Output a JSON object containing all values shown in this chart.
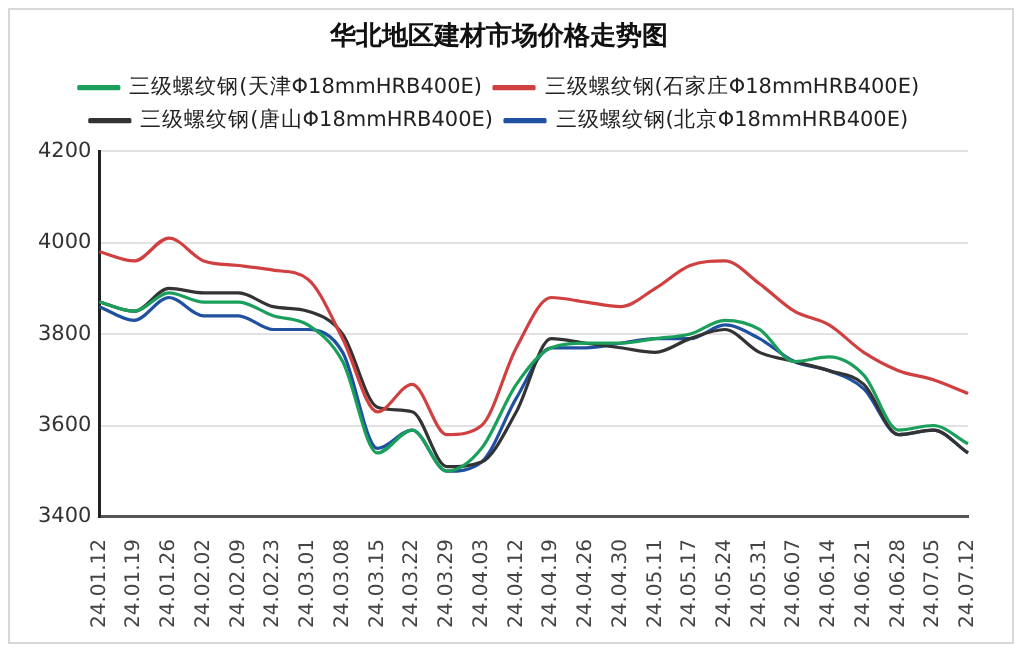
{
  "chart_data": {
    "type": "line",
    "title": "华北地区建材市场价格走势图",
    "categories": [
      "24.01.12",
      "24.01.19",
      "24.01.26",
      "24.02.02",
      "24.02.09",
      "24.02.23",
      "24.03.01",
      "24.03.08",
      "24.03.15",
      "24.03.22",
      "24.03.29",
      "24.04.03",
      "24.04.12",
      "24.04.19",
      "24.04.26",
      "24.04.30",
      "24.05.11",
      "24.05.17",
      "24.05.24",
      "24.05.31",
      "24.06.07",
      "24.06.14",
      "24.06.21",
      "24.06.28",
      "24.07.05",
      "24.07.12"
    ],
    "series": [
      {
        "name": "三级螺纹钢(天津Φ18mmHRB400E)",
        "color": "#1aa05a",
        "values": [
          3870,
          3850,
          3890,
          3870,
          3870,
          3840,
          3820,
          3740,
          3540,
          3590,
          3500,
          3550,
          3690,
          3770,
          3780,
          3780,
          3790,
          3800,
          3830,
          3810,
          3740,
          3750,
          3710,
          3590,
          3600,
          3560
        ]
      },
      {
        "name": "三级螺纹钢(石家庄Φ18mmHRB400E)",
        "color": "#d04040",
        "values": [
          3980,
          3960,
          4010,
          3960,
          3950,
          3940,
          3920,
          3790,
          3630,
          3690,
          3580,
          3600,
          3770,
          3880,
          3870,
          3860,
          3900,
          3950,
          3960,
          3910,
          3850,
          3820,
          3760,
          3720,
          3700,
          3670
        ]
      },
      {
        "name": "三级螺纹钢(唐山Φ18mmHRB400E)",
        "color": "#333333",
        "values": [
          3870,
          3850,
          3900,
          3890,
          3890,
          3860,
          3850,
          3800,
          3640,
          3630,
          3510,
          3520,
          3630,
          3790,
          3780,
          3770,
          3760,
          3790,
          3810,
          3760,
          3740,
          3720,
          3690,
          3580,
          3590,
          3540
        ]
      },
      {
        "name": "三级螺纹钢(北京Φ18mmHRB400E)",
        "color": "#2050a0",
        "values": [
          3860,
          3830,
          3880,
          3840,
          3840,
          3810,
          3810,
          3760,
          3550,
          3590,
          3500,
          3520,
          3660,
          3770,
          3770,
          3780,
          3790,
          3790,
          3820,
          3790,
          3740,
          3720,
          3680,
          3580,
          3590,
          3540
        ]
      }
    ],
    "ylim": [
      3400,
      4200
    ],
    "yticks": [
      3400,
      3600,
      3800,
      4000,
      4200
    ],
    "grid": "y",
    "legend": "top",
    "marker": "none",
    "line_style": "solid"
  }
}
